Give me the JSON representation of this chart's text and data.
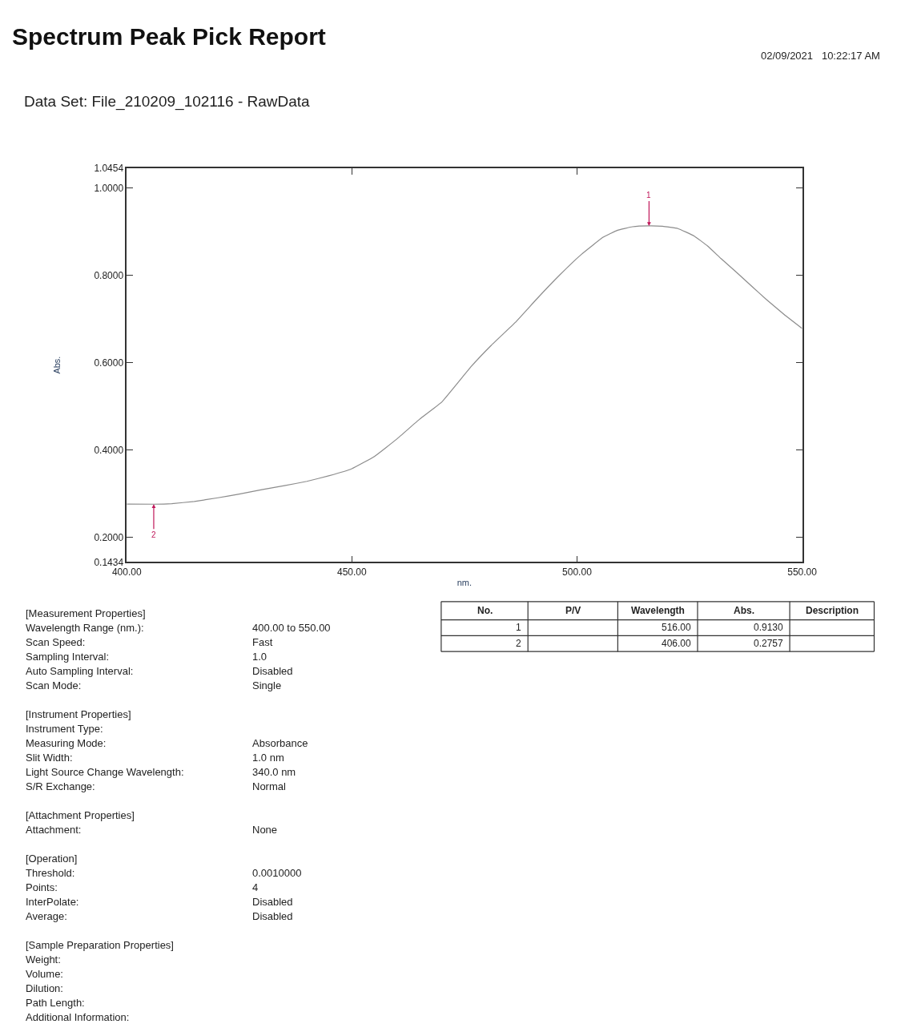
{
  "chart_data": {
    "type": "line",
    "title": "Spectrum Peak Pick Report",
    "subtitle": "Data Set: File_210209_102116 - RawData",
    "xlabel": "nm.",
    "ylabel": "Abs.",
    "x": [
      400,
      406,
      410,
      415,
      420,
      425,
      430,
      435,
      440,
      445,
      450,
      455,
      460,
      465,
      470,
      476.5,
      481,
      486.3,
      491,
      496.1,
      501,
      505.8,
      509,
      512.3,
      516,
      519,
      522.4,
      526,
      529,
      532,
      535.5,
      539,
      542,
      546,
      550
    ],
    "series": [
      {
        "color": "#8c8c8c",
        "values": [
          0.276,
          0.2757,
          0.277,
          0.282,
          0.29,
          0.299,
          0.309,
          0.318,
          0.328,
          0.341,
          0.357,
          0.385,
          0.425,
          0.47,
          0.51,
          0.591,
          0.64,
          0.692,
          0.745,
          0.8,
          0.848,
          0.887,
          0.903,
          0.911,
          0.913,
          0.912,
          0.907,
          0.89,
          0.867,
          0.838,
          0.806,
          0.773,
          0.745,
          0.71,
          0.678
        ]
      }
    ],
    "xlim": [
      400,
      550
    ],
    "ylim": [
      0.1434,
      1.0454
    ],
    "xticks": [
      {
        "value": 400,
        "label": "400.00"
      },
      {
        "value": 450,
        "label": "450.00"
      },
      {
        "value": 500,
        "label": "500.00"
      },
      {
        "value": 550,
        "label": "550.00"
      }
    ],
    "yticks": [
      {
        "value": 0.1434,
        "label": "0.1434"
      },
      {
        "value": 0.2,
        "label": "0.2000"
      },
      {
        "value": 0.4,
        "label": "0.4000"
      },
      {
        "value": 0.6,
        "label": "0.6000"
      },
      {
        "value": 0.8,
        "label": "0.8000"
      },
      {
        "value": 1.0,
        "label": "1.0000"
      },
      {
        "value": 1.0454,
        "label": "1.0454"
      }
    ],
    "annotations": [
      {
        "text": "1",
        "x": 516,
        "y": 0.913
      },
      {
        "text": "2",
        "x": 406,
        "y": 0.2757
      },
      "02/09/2021   10:22:17 AM",
      "No.",
      "P/V",
      "Wavelength",
      "Abs.",
      "Description",
      "1",
      "516.00",
      "0.9130",
      "2",
      "406.00",
      "0.2757",
      "[Measurement Properties]",
      "Wavelength Range (nm.):",
      "400.00 to 550.00",
      "Scan Speed:",
      "Fast",
      "Sampling Interval:",
      "1.0",
      "Auto Sampling Interval:",
      "Disabled",
      "Scan Mode:",
      "Single",
      "[Instrument Properties]",
      "Instrument Type:",
      "Measuring Mode:",
      "Absorbance",
      "Slit Width:",
      "1.0 nm",
      "Light Source Change Wavelength:",
      "340.0 nm",
      "S/R Exchange:",
      "Normal",
      "[Attachment Properties]",
      "Attachment:",
      "None",
      "[Operation]",
      "Threshold:",
      "0.0010000",
      "Points:",
      "4",
      "InterPolate:",
      "Disabled",
      "Average:",
      "Disabled",
      "[Sample Preparation Properties]",
      "Weight:",
      "Volume:",
      "Dilution:",
      "Path Length:",
      "Additional Information:"
    ]
  }
}
